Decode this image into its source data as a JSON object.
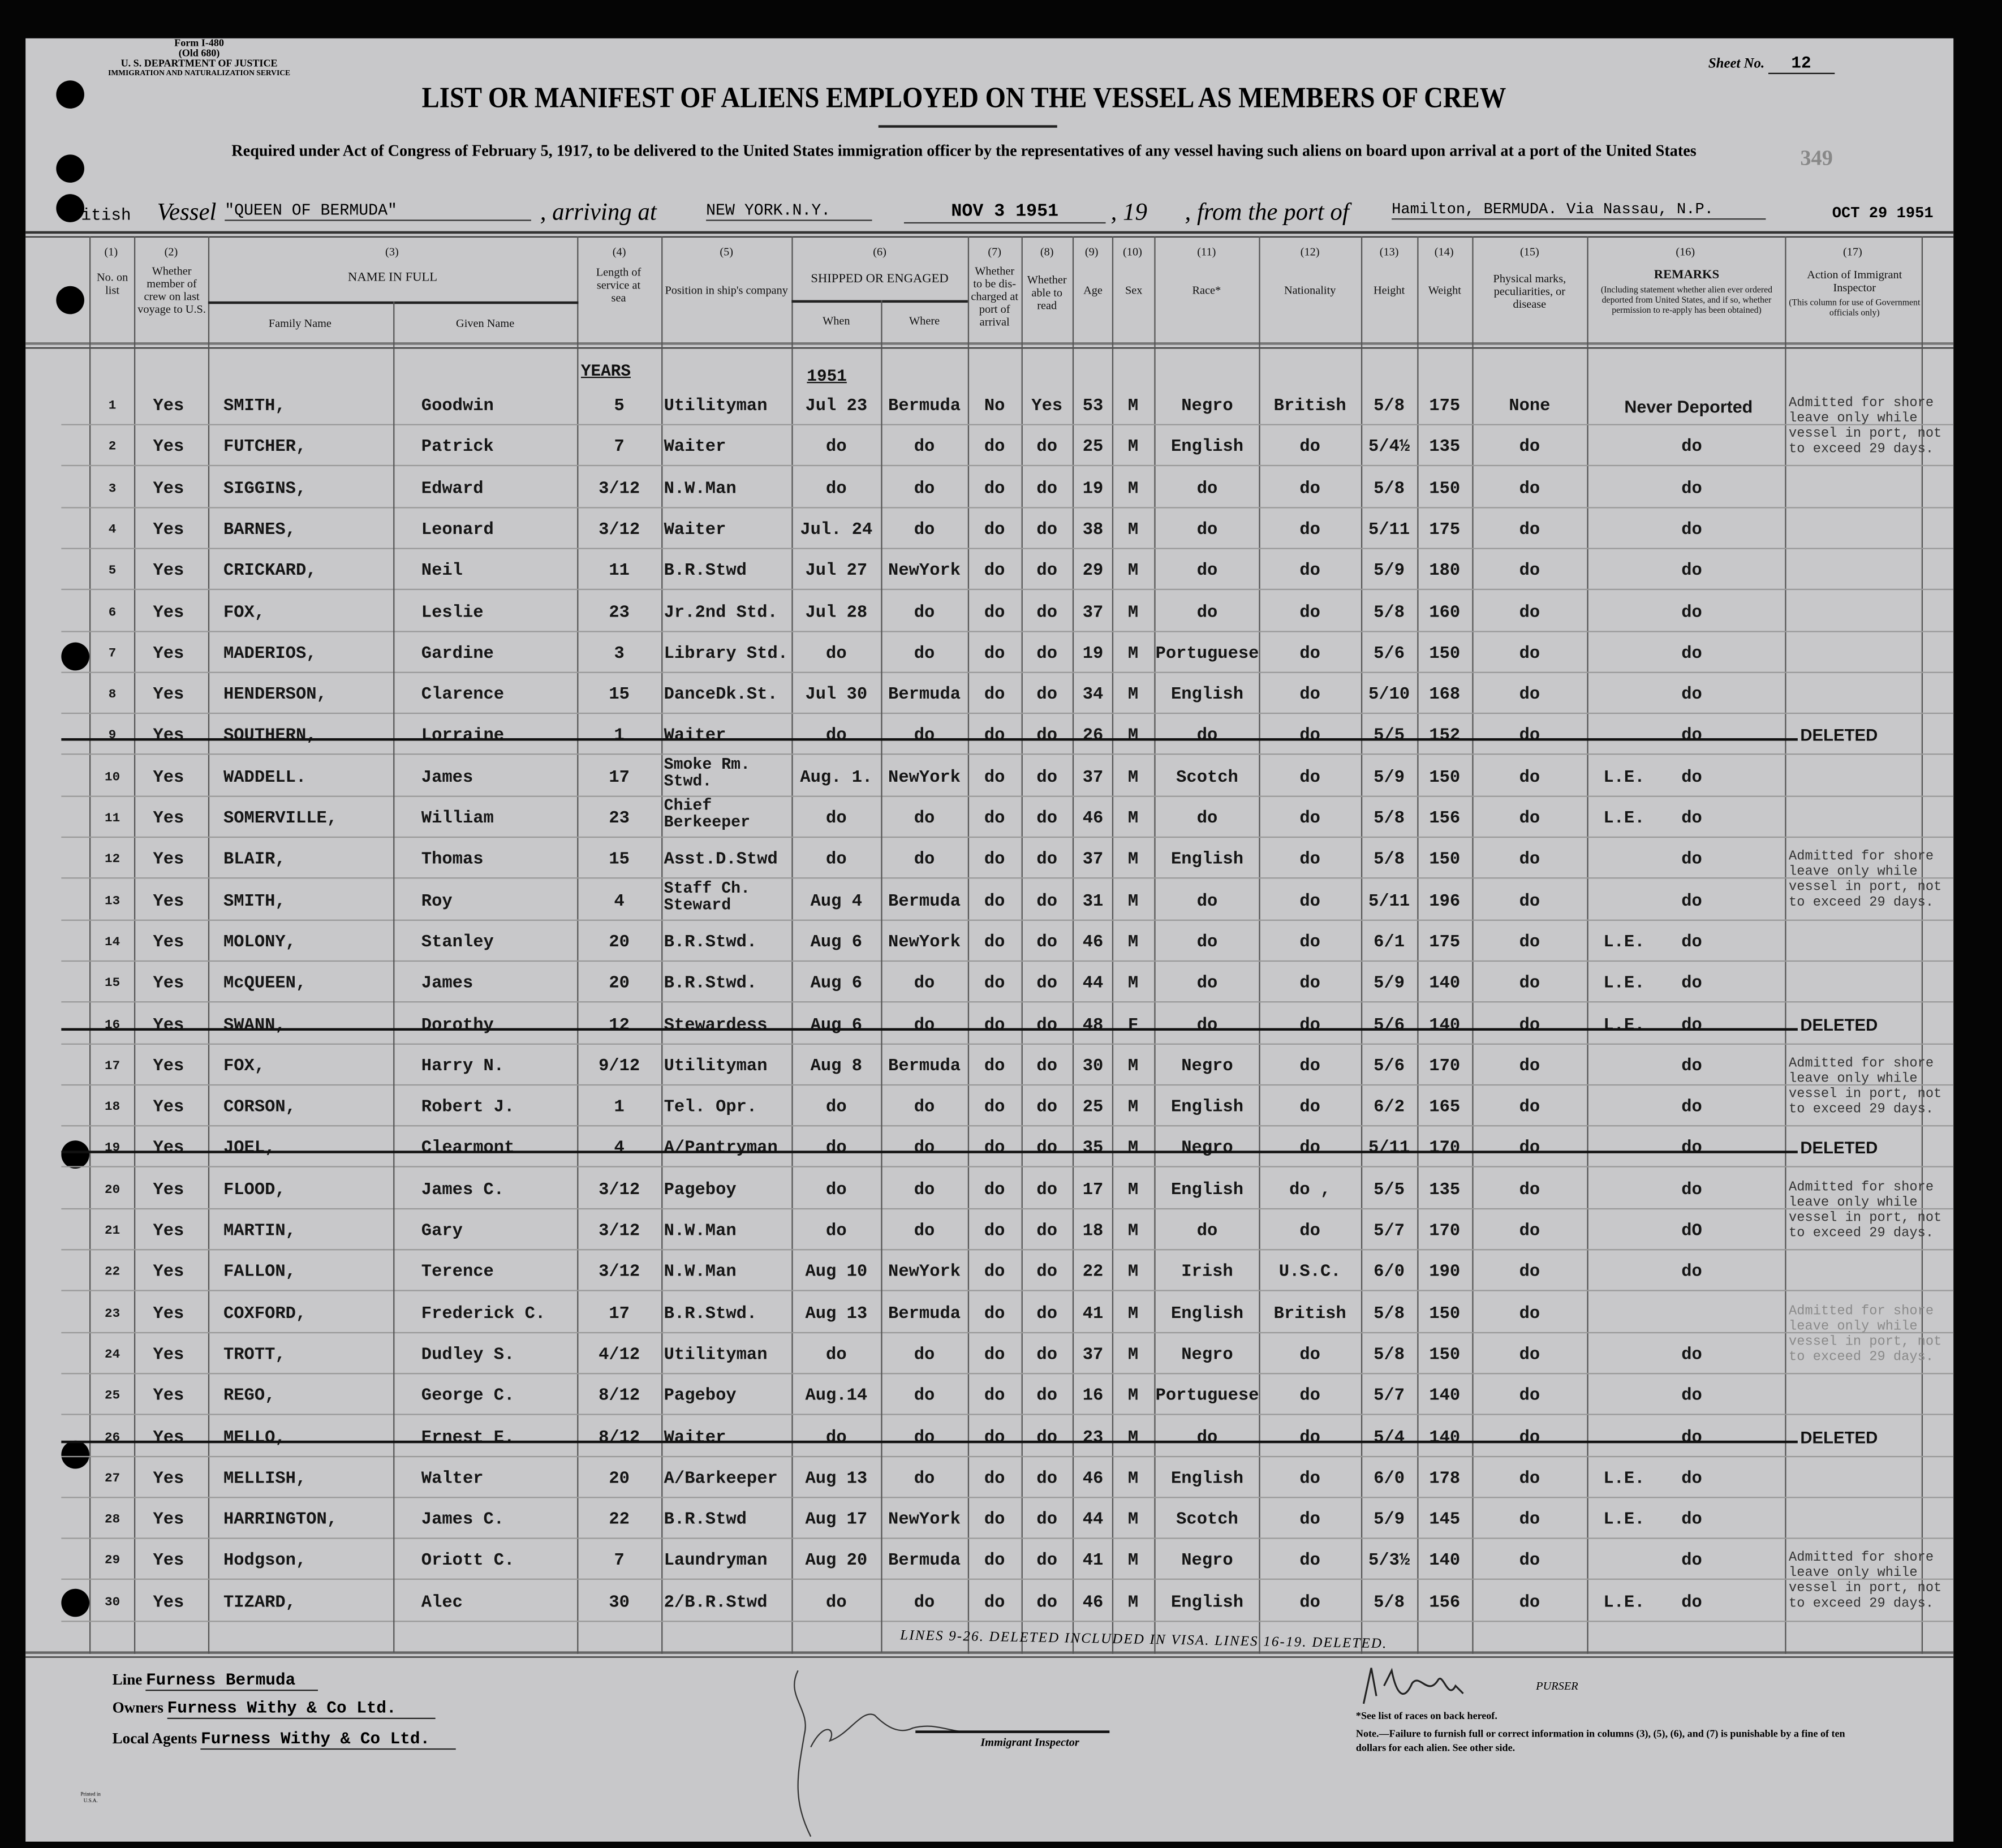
{
  "form": {
    "form_no": "Form I-480",
    "old_no": "(Old 680)",
    "department": "U. S. DEPARTMENT OF JUSTICE",
    "service": "Immigration and Naturalization Service",
    "sheet_label": "Sheet No.",
    "sheet_no": "12",
    "stamp_no": "349",
    "title": "LIST OR MANIFEST OF ALIENS EMPLOYED ON THE VESSEL AS MEMBERS OF CREW",
    "subtitle": "Required under Act of Congress of February 5, 1917, to be delivered to the United States immigration officer by the representatives of any vessel having such aliens on board upon arrival at a port of the United States",
    "date_stamp": "OCT 29 1951"
  },
  "vessel_line": {
    "nationality": "British",
    "vessel_label": "Vessel",
    "vessel": "\"QUEEN OF BERMUDA\"",
    "arriving_label": ", arriving at",
    "arriving_at": "NEW YORK.N.Y.",
    "date": "NOV 3 1951",
    "year_label": ", 19",
    "from_label": ", from the port of",
    "from_port": "Hamilton, BERMUDA. Via Nassau, N.P."
  },
  "columns": {
    "nums": [
      "(1)",
      "(2)",
      "(3)",
      "(4)",
      "(5)",
      "(6)",
      "(7)",
      "(8)",
      "(9)",
      "(10)",
      "(11)",
      "(12)",
      "(13)",
      "(14)",
      "(15)",
      "(16)",
      "(17)"
    ],
    "no_on_list": "No. on list",
    "member_crew": "Whether member of crew on last voyage to U.S.",
    "name_in_full": "NAME IN FULL",
    "family_name": "Family Name",
    "given_name": "Given Name",
    "length_service": "Length of service at sea",
    "position": "Position in ship's company",
    "shipped": "SHIPPED OR ENGAGED",
    "when": "When",
    "where": "Where",
    "discharged": "Whether to be dis-charged at port of arrival",
    "able_read": "Whether able to read",
    "age": "Age",
    "sex": "Sex",
    "race": "Race*",
    "nationality": "Nationality",
    "height": "Height",
    "weight": "Weight",
    "physical": "Physical marks, peculiarities, or disease",
    "remarks": "REMARKS",
    "remarks_sub": "(Including statement whether alien ever ordered deported from United States, and if so, whether permission to re-apply has been obtained)",
    "action": "Action of Immigrant Inspector",
    "action_sub": "(This column for use of Government officials only)",
    "years_label": "YEARS",
    "year_label": "1951"
  },
  "rows": [
    {
      "no": "1",
      "member": "Yes",
      "family": "SMITH,",
      "given": "Goodwin",
      "length": "5",
      "position": "Utilityman",
      "when": "Jul 23",
      "where": "Bermuda",
      "discharged": "No",
      "read": "Yes",
      "age": "53",
      "sex": "M",
      "race": "Negro",
      "nationality": "British",
      "height": "5/8",
      "weight": "175",
      "physical": "None",
      "le": "",
      "remarks": "Never Deported",
      "deleted": false,
      "note": "Admitted for shore leave only while vessel in port, not to exceed 29 days."
    },
    {
      "no": "2",
      "member": "Yes",
      "family": "FUTCHER,",
      "given": "Patrick",
      "length": "7",
      "position": "Waiter",
      "when": "do",
      "where": "do",
      "discharged": "do",
      "read": "do",
      "age": "25",
      "sex": "M",
      "race": "English",
      "nationality": "do",
      "height": "5/4½",
      "weight": "135",
      "physical": "do",
      "le": "",
      "remarks": "do",
      "deleted": false
    },
    {
      "no": "3",
      "member": "Yes",
      "family": "SIGGINS,",
      "given": "Edward",
      "length": "3/12",
      "position": "N.W.Man",
      "when": "do",
      "where": "do",
      "discharged": "do",
      "read": "do",
      "age": "19",
      "sex": "M",
      "race": "do",
      "nationality": "do",
      "height": "5/8",
      "weight": "150",
      "physical": "do",
      "le": "",
      "remarks": "do",
      "deleted": false
    },
    {
      "no": "4",
      "member": "Yes",
      "family": "BARNES,",
      "given": "Leonard",
      "length": "3/12",
      "position": "Waiter",
      "when": "Jul. 24",
      "where": "do",
      "discharged": "do",
      "read": "do",
      "age": "38",
      "sex": "M",
      "race": "do",
      "nationality": "do",
      "height": "5/11",
      "weight": "175",
      "physical": "do",
      "le": "",
      "remarks": "do",
      "deleted": false
    },
    {
      "no": "5",
      "member": "Yes",
      "family": "CRICKARD,",
      "given": "Neil",
      "length": "11",
      "position": "B.R.Stwd",
      "when": "Jul 27",
      "where": "NewYork",
      "discharged": "do",
      "read": "do",
      "age": "29",
      "sex": "M",
      "race": "do",
      "nationality": "do",
      "height": "5/9",
      "weight": "180",
      "physical": "do",
      "le": "",
      "remarks": "do",
      "deleted": false
    },
    {
      "no": "6",
      "member": "Yes",
      "family": "FOX,",
      "given": "Leslie",
      "length": "23",
      "position": "Jr.2nd Std.",
      "when": "Jul 28",
      "where": "do",
      "discharged": "do",
      "read": "do",
      "age": "37",
      "sex": "M",
      "race": "do",
      "nationality": "do",
      "height": "5/8",
      "weight": "160",
      "physical": "do",
      "le": "",
      "remarks": "do",
      "deleted": false
    },
    {
      "no": "7",
      "member": "Yes",
      "family": "MADERIOS,",
      "given": "Gardine",
      "length": "3",
      "position": "Library Std.",
      "when": "do",
      "where": "do",
      "discharged": "do",
      "read": "do",
      "age": "19",
      "sex": "M",
      "race": "Portuguese",
      "nationality": "do",
      "height": "5/6",
      "weight": "150",
      "physical": "do",
      "le": "",
      "remarks": "do",
      "deleted": false
    },
    {
      "no": "8",
      "member": "Yes",
      "family": "HENDERSON,",
      "given": "Clarence",
      "length": "15",
      "position": "DanceDk.St.",
      "when": "Jul 30",
      "where": "Bermuda",
      "discharged": "do",
      "read": "do",
      "age": "34",
      "sex": "M",
      "race": "English",
      "nationality": "do",
      "height": "5/10",
      "weight": "168",
      "physical": "do",
      "le": "",
      "remarks": "do",
      "deleted": false
    },
    {
      "no": "9",
      "member": "Yes",
      "family": "SOUTHERN,",
      "given": "Lorraine",
      "length": "1",
      "position": "Waiter",
      "when": "do",
      "where": "do",
      "discharged": "do",
      "read": "do",
      "age": "26",
      "sex": "M",
      "race": "do",
      "nationality": "do",
      "height": "5/5",
      "weight": "152",
      "physical": "do",
      "le": "",
      "remarks": "do",
      "deleted": true
    },
    {
      "no": "10",
      "member": "Yes",
      "family": "WADDELL.",
      "given": "James",
      "length": "17",
      "position": "Smoke Rm. Stwd.",
      "when": "Aug. 1.",
      "where": "NewYork",
      "discharged": "do",
      "read": "do",
      "age": "37",
      "sex": "M",
      "race": "Scotch",
      "nationality": "do",
      "height": "5/9",
      "weight": "150",
      "physical": "do",
      "le": "L.E.",
      "remarks": "do",
      "deleted": false
    },
    {
      "no": "11",
      "member": "Yes",
      "family": "SOMERVILLE,",
      "given": "William",
      "length": "23",
      "position": "Chief Berkeeper",
      "when": "do",
      "where": "do",
      "discharged": "do",
      "read": "do",
      "age": "46",
      "sex": "M",
      "race": "do",
      "nationality": "do",
      "height": "5/8",
      "weight": "156",
      "physical": "do",
      "le": "L.E.",
      "remarks": "do",
      "deleted": false
    },
    {
      "no": "12",
      "member": "Yes",
      "family": "BLAIR,",
      "given": "Thomas",
      "length": "15",
      "position": "Asst.D.Stwd",
      "when": "do",
      "where": "do",
      "discharged": "do",
      "read": "do",
      "age": "37",
      "sex": "M",
      "race": "English",
      "nationality": "do",
      "height": "5/8",
      "weight": "150",
      "physical": "do",
      "le": "",
      "remarks": "do",
      "deleted": false,
      "note": "Admitted for shore leave only while vessel in port, not to exceed 29 days."
    },
    {
      "no": "13",
      "member": "Yes",
      "family": "SMITH,",
      "given": "Roy",
      "length": "4",
      "position": "Staff Ch. Steward",
      "when": "Aug 4",
      "where": "Bermuda",
      "discharged": "do",
      "read": "do",
      "age": "31",
      "sex": "M",
      "race": "do",
      "nationality": "do",
      "height": "5/11",
      "weight": "196",
      "physical": "do",
      "le": "",
      "remarks": "do",
      "deleted": false
    },
    {
      "no": "14",
      "member": "Yes",
      "family": "MOLONY,",
      "given": "Stanley",
      "length": "20",
      "position": "B.R.Stwd.",
      "when": "Aug 6",
      "where": "NewYork",
      "discharged": "do",
      "read": "do",
      "age": "46",
      "sex": "M",
      "race": "do",
      "nationality": "do",
      "height": "6/1",
      "weight": "175",
      "physical": "do",
      "le": "L.E.",
      "remarks": "do",
      "deleted": false
    },
    {
      "no": "15",
      "member": "Yes",
      "family": "McQUEEN,",
      "given": "James",
      "length": "20",
      "position": "B.R.Stwd.",
      "when": "Aug 6",
      "where": "do",
      "discharged": "do",
      "read": "do",
      "age": "44",
      "sex": "M",
      "race": "do",
      "nationality": "do",
      "height": "5/9",
      "weight": "140",
      "physical": "do",
      "le": "L.E.",
      "remarks": "do",
      "deleted": false
    },
    {
      "no": "16",
      "member": "Yes",
      "family": "SWANN,",
      "given": "Dorothy",
      "length": "12",
      "position": "Stewardess",
      "when": "Aug 6",
      "where": "do",
      "discharged": "do",
      "read": "do",
      "age": "48",
      "sex": "F",
      "race": "do",
      "nationality": "do",
      "height": "5/6",
      "weight": "140",
      "physical": "do",
      "le": "L.E.",
      "remarks": "do",
      "deleted": true
    },
    {
      "no": "17",
      "member": "Yes",
      "family": "FOX,",
      "given": "Harry N.",
      "length": "9/12",
      "position": "Utilityman",
      "when": "Aug 8",
      "where": "Bermuda",
      "discharged": "do",
      "read": "do",
      "age": "30",
      "sex": "M",
      "race": "Negro",
      "nationality": "do",
      "height": "5/6",
      "weight": "170",
      "physical": "do",
      "le": "",
      "remarks": "do",
      "deleted": false,
      "note": "Admitted for shore leave only while vessel in port, not to exceed 29 days."
    },
    {
      "no": "18",
      "member": "Yes",
      "family": "CORSON,",
      "given": "Robert J.",
      "length": "1",
      "position": "Tel. Opr.",
      "when": "do",
      "where": "do",
      "discharged": "do",
      "read": "do",
      "age": "25",
      "sex": "M",
      "race": "English",
      "nationality": "do",
      "height": "6/2",
      "weight": "165",
      "physical": "do",
      "le": "",
      "remarks": "do",
      "deleted": false
    },
    {
      "no": "19",
      "member": "Yes",
      "family": "JOEL,",
      "given": "Clearmont",
      "length": "4",
      "position": "A/Pantryman",
      "when": "do",
      "where": "do",
      "discharged": "do",
      "read": "do",
      "age": "35",
      "sex": "M",
      "race": "Negro",
      "nationality": "do",
      "height": "5/11",
      "weight": "170",
      "physical": "do",
      "le": "",
      "remarks": "do",
      "deleted": true
    },
    {
      "no": "20",
      "member": "Yes",
      "family": "FLOOD,",
      "given": "James C.",
      "length": "3/12",
      "position": "Pageboy",
      "when": "do",
      "where": "do",
      "discharged": "do",
      "read": "do",
      "age": "17",
      "sex": "M",
      "race": "English",
      "nationality": "do ,",
      "height": "5/5",
      "weight": "135",
      "physical": "do",
      "le": "",
      "remarks": "do",
      "deleted": false,
      "note": "Admitted for shore leave only while vessel in port, not to exceed 29 days."
    },
    {
      "no": "21",
      "member": "Yes",
      "family": "MARTIN,",
      "given": "Gary",
      "length": "3/12",
      "position": "N.W.Man",
      "when": "do",
      "where": "do",
      "discharged": "do",
      "read": "do",
      "age": "18",
      "sex": "M",
      "race": "do",
      "nationality": "do",
      "height": "5/7",
      "weight": "170",
      "physical": "do",
      "le": "",
      "remarks": "dO",
      "deleted": false
    },
    {
      "no": "22",
      "member": "Yes",
      "family": "FALLON,",
      "given": "Terence",
      "length": "3/12",
      "position": "N.W.Man",
      "when": "Aug 10",
      "where": "NewYork",
      "discharged": "do",
      "read": "do",
      "age": "22",
      "sex": "M",
      "race": "Irish",
      "nationality": "U.S.C.",
      "height": "6/0",
      "weight": "190",
      "physical": "do",
      "le": "",
      "remarks": "do",
      "deleted": false
    },
    {
      "no": "23",
      "member": "Yes",
      "family": "COXFORD,",
      "given": "Frederick C.",
      "length": "17",
      "position": "B.R.Stwd.",
      "when": "Aug 13",
      "where": "Bermuda",
      "discharged": "do",
      "read": "do",
      "age": "41",
      "sex": "M",
      "race": "English",
      "nationality": "British",
      "height": "5/8",
      "weight": "150",
      "physical": "do",
      "le": "",
      "remarks": "",
      "deleted": false,
      "note": "Admitted for shore leave only while vessel in port, not to exceed 29 days.",
      "note_faint": true
    },
    {
      "no": "24",
      "member": "Yes",
      "family": "TROTT,",
      "given": "Dudley S.",
      "length": "4/12",
      "position": "Utilityman",
      "when": "do",
      "where": "do",
      "discharged": "do",
      "read": "do",
      "age": "37",
      "sex": "M",
      "race": "Negro",
      "nationality": "do",
      "height": "5/8",
      "weight": "150",
      "physical": "do",
      "le": "",
      "remarks": "do",
      "deleted": false
    },
    {
      "no": "25",
      "member": "Yes",
      "family": "REGO,",
      "given": "George C.",
      "length": "8/12",
      "position": "Pageboy",
      "when": "Aug.14",
      "where": "do",
      "discharged": "do",
      "read": "do",
      "age": "16",
      "sex": "M",
      "race": "Portuguese",
      "nationality": "do",
      "height": "5/7",
      "weight": "140",
      "physical": "do",
      "le": "",
      "remarks": "do",
      "deleted": false
    },
    {
      "no": "26",
      "member": "Yes",
      "family": "MELLO,",
      "given": "Ernest E.",
      "length": "8/12",
      "position": "Waiter",
      "when": "do",
      "where": "do",
      "discharged": "do",
      "read": "do",
      "age": "23",
      "sex": "M",
      "race": "do",
      "nationality": "do",
      "height": "5/4",
      "weight": "140",
      "physical": "do",
      "le": "",
      "remarks": "do",
      "deleted": true
    },
    {
      "no": "27",
      "member": "Yes",
      "family": "MELLISH,",
      "given": "Walter",
      "length": "20",
      "position": "A/Barkeeper",
      "when": "Aug 13",
      "where": "do",
      "discharged": "do",
      "read": "do",
      "age": "46",
      "sex": "M",
      "race": "English",
      "nationality": "do",
      "height": "6/0",
      "weight": "178",
      "physical": "do",
      "le": "L.E.",
      "remarks": "do",
      "deleted": false
    },
    {
      "no": "28",
      "member": "Yes",
      "family": "HARRINGTON,",
      "given": "James C.",
      "length": "22",
      "position": "B.R.Stwd",
      "when": "Aug 17",
      "where": "NewYork",
      "discharged": "do",
      "read": "do",
      "age": "44",
      "sex": "M",
      "race": "Scotch",
      "nationality": "do",
      "height": "5/9",
      "weight": "145",
      "physical": "do",
      "le": "L.E.",
      "remarks": "do",
      "deleted": false
    },
    {
      "no": "29",
      "member": "Yes",
      "family": "Hodgson,",
      "given": "Oriott C.",
      "length": "7",
      "position": "Laundryman",
      "when": "Aug 20",
      "where": "Bermuda",
      "discharged": "do",
      "read": "do",
      "age": "41",
      "sex": "M",
      "race": "Negro",
      "nationality": "do",
      "height": "5/3½",
      "weight": "140",
      "physical": "do",
      "le": "",
      "remarks": "do",
      "deleted": false,
      "note": "Admitted for shore leave only while vessel in port, not to exceed 29 days."
    },
    {
      "no": "30",
      "member": "Yes",
      "family": "TIZARD,",
      "given": "Alec",
      "length": "30",
      "position": "2/B.R.Stwd",
      "when": "do",
      "where": "do",
      "discharged": "do",
      "read": "do",
      "age": "46",
      "sex": "M",
      "race": "English",
      "nationality": "do",
      "height": "5/8",
      "weight": "156",
      "physical": "do",
      "le": "L.E.",
      "remarks": "do",
      "deleted": false
    }
  ],
  "deleted_label": "DELETED",
  "handwritten_note": "Lines 9-26. Deleted Included in Visa. Lines 16-19. Deleted.",
  "footer": {
    "line_label": "Line",
    "line": "Furness Bermuda",
    "owners_label": "Owners",
    "owners": "Furness Withy & Co Ltd.",
    "agents_label": "Local Agents",
    "agents": "Furness Withy & Co Ltd.",
    "inspector_label": "Immigrant Inspector",
    "purser_label": "Purser",
    "races_note": "*See list of races on back hereof.",
    "note": "Note.—Failure to furnish full or correct information in columns (3), (5), (6), and (7) is punishable by a fine of ten dollars for each alien. See other side.",
    "printed": "Printed in U.S.A."
  }
}
